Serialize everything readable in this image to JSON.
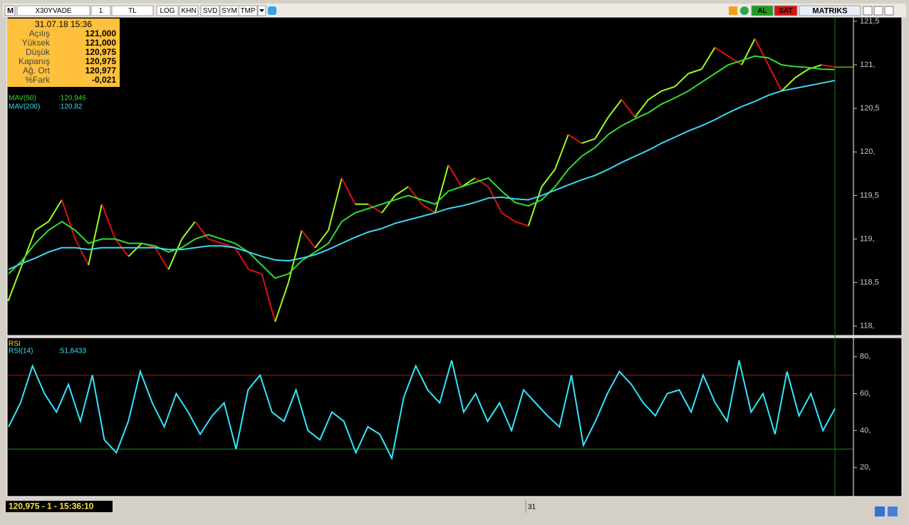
{
  "toolbar": {
    "symbol": "X30YVADE",
    "period": "1",
    "currency": "TL",
    "buttons": [
      "LOG",
      "KHN",
      "SVD",
      "SYM",
      "TMP"
    ],
    "buy": "AL",
    "sell": "SAT",
    "brand": "MATRIKS"
  },
  "info_box": {
    "date": "31.07.18 15:36",
    "rows": [
      [
        "Açılış",
        "121,000"
      ],
      [
        "Yüksek",
        "121,000"
      ],
      [
        "Düşük",
        "120,975"
      ],
      [
        "Kapanış",
        "120,975"
      ],
      [
        "Ağ. Ort",
        "120,977"
      ],
      [
        "%Fark",
        "-0,021"
      ]
    ]
  },
  "chart_data": [
    {
      "type": "price",
      "values": [
        118.3,
        118.7,
        119.1,
        119.2,
        119.45,
        119.0,
        118.7,
        119.4,
        119.0,
        118.8,
        118.95,
        118.9,
        118.65,
        119.0,
        119.2,
        119.0,
        118.95,
        118.9,
        118.65,
        118.6,
        118.05,
        118.5,
        119.1,
        118.9,
        119.1,
        119.7,
        119.4,
        119.4,
        119.3,
        119.5,
        119.6,
        119.4,
        119.3,
        119.85,
        119.6,
        119.7,
        119.6,
        119.3,
        119.2,
        119.15,
        119.6,
        119.8,
        120.2,
        120.1,
        120.15,
        120.4,
        120.6,
        120.4,
        120.6,
        120.7,
        120.75,
        120.9,
        120.95,
        121.2,
        121.1,
        121.0,
        121.3,
        121.0,
        120.7,
        120.85,
        120.95,
        121.0,
        120.975
      ],
      "up_color": "#9cff1a",
      "down_color": "#e01010",
      "series": [
        {
          "name": "MAV(50)",
          "label": ":120,946",
          "color": "#30dd30",
          "values": [
            118.6,
            118.75,
            118.95,
            119.1,
            119.2,
            119.1,
            118.95,
            119.0,
            119.0,
            118.95,
            118.95,
            118.92,
            118.85,
            118.9,
            119.0,
            119.05,
            119.0,
            118.95,
            118.85,
            118.7,
            118.55,
            118.6,
            118.75,
            118.85,
            118.95,
            119.2,
            119.3,
            119.35,
            119.4,
            119.45,
            119.5,
            119.45,
            119.4,
            119.55,
            119.6,
            119.65,
            119.7,
            119.55,
            119.42,
            119.38,
            119.45,
            119.6,
            119.8,
            119.95,
            120.05,
            120.2,
            120.3,
            120.38,
            120.45,
            120.55,
            120.62,
            120.7,
            120.8,
            120.9,
            121.0,
            121.05,
            121.1,
            121.08,
            121.0,
            120.98,
            120.97,
            120.95,
            120.946
          ]
        },
        {
          "name": "MAV(200)",
          "label": ":120,82",
          "color": "#3ad8f0",
          "values": [
            118.65,
            118.72,
            118.78,
            118.85,
            118.9,
            118.9,
            118.88,
            118.9,
            118.9,
            118.9,
            118.9,
            118.9,
            118.88,
            118.88,
            118.9,
            118.92,
            118.92,
            118.9,
            118.85,
            118.8,
            118.76,
            118.75,
            118.78,
            118.82,
            118.88,
            118.95,
            119.02,
            119.08,
            119.12,
            119.18,
            119.22,
            119.26,
            119.3,
            119.35,
            119.38,
            119.42,
            119.47,
            119.48,
            119.46,
            119.45,
            119.5,
            119.56,
            119.62,
            119.68,
            119.73,
            119.8,
            119.88,
            119.95,
            120.02,
            120.1,
            120.17,
            120.24,
            120.3,
            120.37,
            120.45,
            120.52,
            120.58,
            120.65,
            120.7,
            120.73,
            120.76,
            120.79,
            120.82
          ]
        }
      ],
      "ylim": [
        117.9,
        121.54
      ],
      "yticks": [
        {
          "value": 121.5,
          "label": "121,5"
        },
        {
          "value": 121,
          "label": "121,"
        },
        {
          "value": 120.5,
          "label": "120,5"
        },
        {
          "value": 120,
          "label": "120,"
        },
        {
          "value": 119.5,
          "label": "119,5"
        },
        {
          "value": 119,
          "label": "119,"
        },
        {
          "value": 118.5,
          "label": "118,5"
        },
        {
          "value": 118,
          "label": "118,"
        }
      ]
    },
    {
      "type": "line",
      "title": "RSI",
      "series": [
        {
          "name": "RSI(14)",
          "label": ":51,8433",
          "color": "#33e6ff",
          "values": [
            42,
            55,
            75,
            60,
            50,
            65,
            45,
            70,
            35,
            28,
            45,
            72,
            55,
            42,
            60,
            50,
            38,
            48,
            55,
            30,
            62,
            70,
            50,
            45,
            62,
            40,
            35,
            50,
            45,
            28,
            42,
            38,
            25,
            58,
            75,
            62,
            55,
            78,
            50,
            60,
            45,
            55,
            40,
            62,
            55,
            48,
            42,
            70,
            32,
            45,
            60,
            72,
            65,
            55,
            48,
            60,
            62,
            50,
            70,
            55,
            45,
            78,
            50,
            60,
            38,
            72,
            48,
            60,
            40,
            51.8433
          ]
        }
      ],
      "levels": [
        {
          "value": 70,
          "color": "#a01010"
        },
        {
          "value": 30,
          "color": "#1c8a1c"
        }
      ],
      "ylim": [
        4.7,
        89.9
      ],
      "yticks": [
        {
          "value": 80,
          "label": "80,"
        },
        {
          "value": 60,
          "label": "60,"
        },
        {
          "value": 40,
          "label": "40,"
        },
        {
          "value": 20,
          "label": "20,"
        }
      ]
    }
  ],
  "status": {
    "last": "120,975 - 1 - 15:36:10",
    "date_marker": "31"
  }
}
